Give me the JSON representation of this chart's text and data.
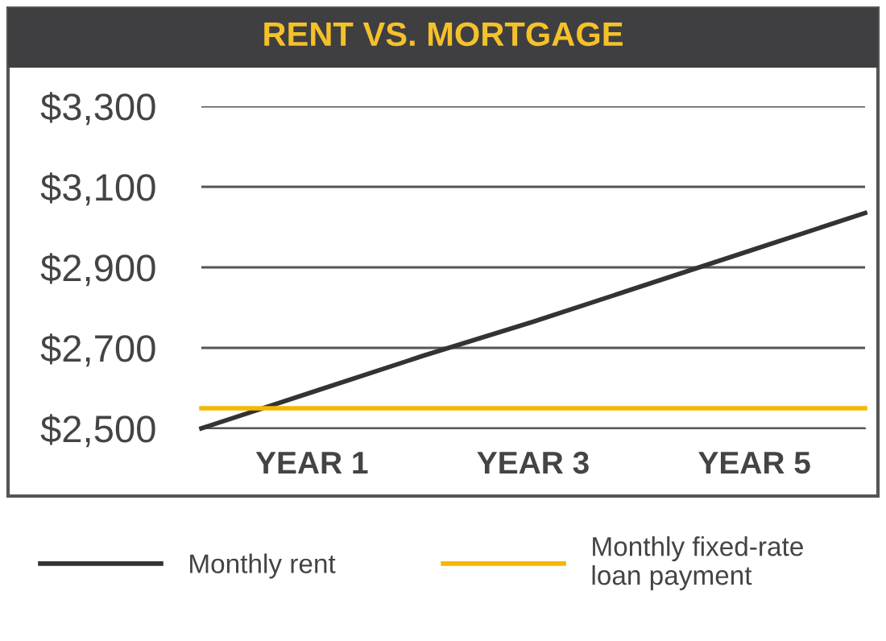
{
  "chart_data": {
    "type": "line",
    "title": "RENT VS. MORTGAGE",
    "categories": [
      null,
      "YEAR 1",
      null,
      "YEAR 3",
      null,
      "YEAR 5",
      null
    ],
    "series": [
      {
        "name": "Monthly rent",
        "color": "#333333",
        "values": [
          2500,
          2590,
          2680,
          2765,
          2855,
          2945,
          3035
        ]
      },
      {
        "name": "Monthly fixed-rate\nloan payment",
        "color": "#f5b800",
        "values": [
          2550,
          2550,
          2550,
          2550,
          2550,
          2550,
          2550
        ]
      }
    ],
    "ylim": [
      2500,
      3300
    ],
    "yticks": [
      {
        "value": 2500,
        "label": "$2,500"
      },
      {
        "value": 2700,
        "label": "$2,700"
      },
      {
        "value": 2900,
        "label": "$2,900"
      },
      {
        "value": 3100,
        "label": "$3,100"
      },
      {
        "value": 3300,
        "label": "$3,300"
      }
    ],
    "grid": "y",
    "legend": "bottom",
    "marker": "none",
    "line_style": "solid"
  }
}
